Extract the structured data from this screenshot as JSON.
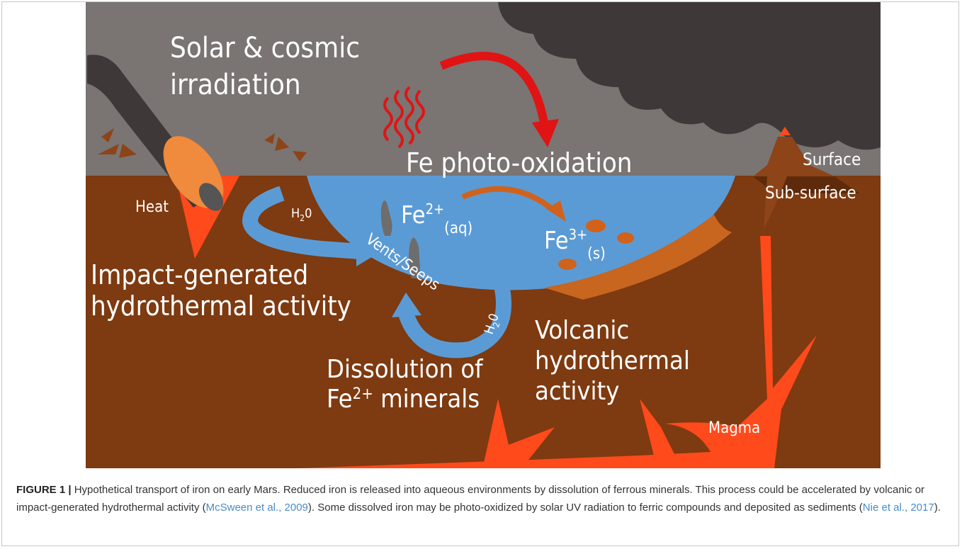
{
  "figure": {
    "labels": {
      "irradiation": [
        "Solar & cosmic",
        "irradiation"
      ],
      "photo_oxidation": "Fe photo-oxidation",
      "surface": "Surface",
      "subsurface": "Sub-surface",
      "heat": "Heat",
      "h2o_left": {
        "base": "H",
        "sub": "2",
        "rest": "0"
      },
      "h2o_right": {
        "base": "H",
        "sub": "2",
        "rest": "0"
      },
      "fe2": {
        "base": "Fe",
        "sup": "2+",
        "sub": "(aq)"
      },
      "fe3": {
        "base": "Fe",
        "sup": "3+",
        "sub": "(s)"
      },
      "vents": "Vents/Seeps",
      "impact": [
        "Impact-generated",
        "hydrothermal activity"
      ],
      "dissolution": {
        "line1": "Dissolution of",
        "base": "Fe",
        "sup": "2+",
        "rest": " minerals"
      },
      "volcanic": [
        "Volcanic",
        "hydrothermal",
        "activity"
      ],
      "magma": "Magma"
    },
    "caption": {
      "label": "FIGURE 1 |",
      "parts": [
        " Hypothetical transport of iron on early Mars. Reduced iron is released into aqueous environments by dissolution of ferrous minerals. This process could be accelerated by volcanic or impact-generated hydrothermal activity (",
        "McSween et al., 2009",
        "). Some dissolved iron may be photo-oxidized by solar UV radiation to ferric compounds and deposited as sediments (",
        "Nie et al., 2017",
        ")."
      ]
    }
  }
}
